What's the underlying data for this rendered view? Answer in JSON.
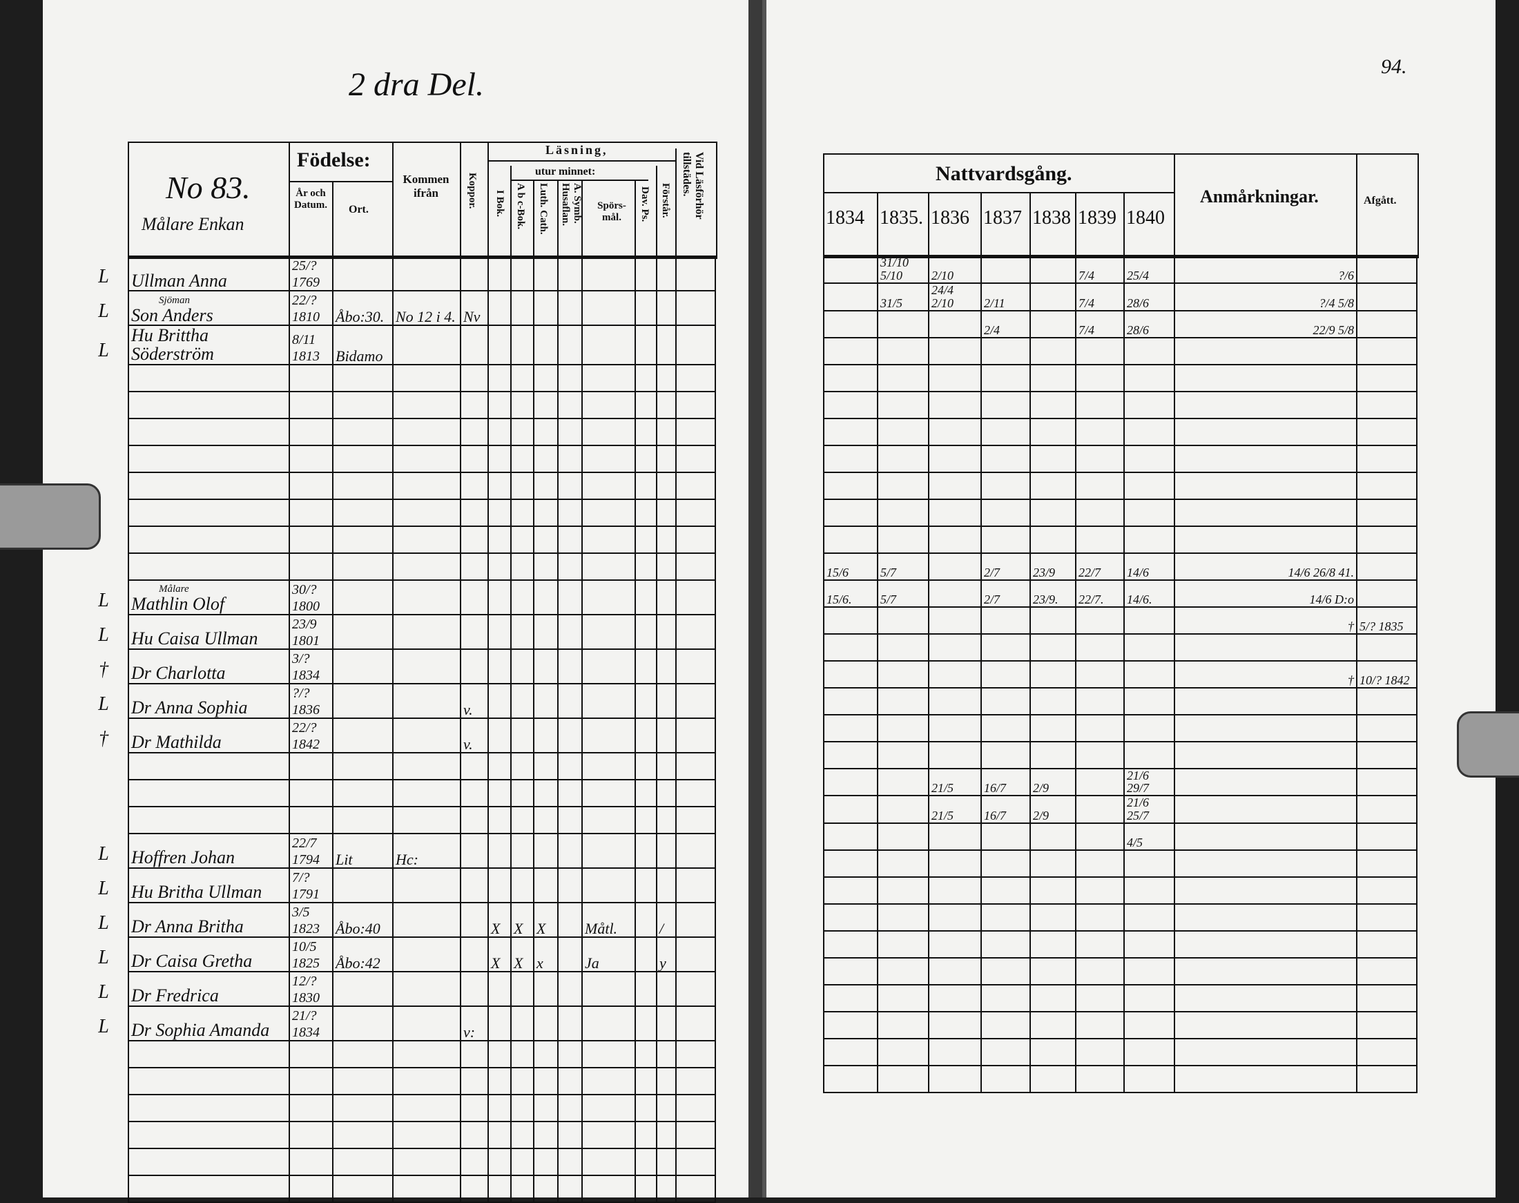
{
  "left_page": {
    "heading": "2 dra Del.",
    "household_number": "No 83.",
    "household_title": "Målare Enkan",
    "headers": {
      "fodelse": "Födelse:",
      "ar_datum": "År och Datum.",
      "ort": "Ort.",
      "kommen": "Kommen ifrån",
      "koppor": "Koppor.",
      "lasning": "Läsning,",
      "utur_minnet": "utur minnet:",
      "i_bok": "I Bok.",
      "abc": "A b c-Bok.",
      "luth": "Luth. Cath.",
      "symb": "A. Symb. Husaflan.",
      "spors": "Spörs-mål.",
      "dav": "Dav. Ps.",
      "forstar": "Förstår.",
      "vid": "Vid Läsförhör tillstädes."
    },
    "rows": [
      {
        "row": 0,
        "mark": "L",
        "name": "Ullman Anna",
        "born": "25/? 1769"
      },
      {
        "row": 1,
        "mark": "L",
        "note": "Sjöman",
        "name": "Son Anders",
        "born": "22/? 1810",
        "ort": "Åbo:30.",
        "kommen": "No 12 i 4.",
        "koppor": "Nv"
      },
      {
        "row": 2,
        "mark": "L",
        "name": "Hu Brittha Söderström",
        "born": "8/11 1813",
        "ort": "Bidamo"
      },
      {
        "row": 11,
        "mark": "L",
        "note": "Målare",
        "name": "Mathlin Olof",
        "born": "30/? 1800"
      },
      {
        "row": 12,
        "mark": "L",
        "name": "Hu Caisa Ullman",
        "born": "23/9 1801"
      },
      {
        "row": 13,
        "mark": "†",
        "name": "Dr Charlotta",
        "born": "3/? 1834"
      },
      {
        "row": 14,
        "mark": "L",
        "name": "Dr Anna Sophia",
        "born": "?/? 1836",
        "koppor": "v."
      },
      {
        "row": 15,
        "mark": "†",
        "name": "Dr Mathilda",
        "born": "22/? 1842",
        "koppor": "v."
      },
      {
        "row": 19,
        "mark": "L",
        "name": "Hoffren Johan",
        "born": "22/7 1794",
        "ort": "Lit",
        "kommen": "Hc:"
      },
      {
        "row": 20,
        "mark": "L",
        "name": "Hu Britha Ullman",
        "born": "7/? 1791"
      },
      {
        "row": 21,
        "mark": "L",
        "name": "Dr Anna Britha",
        "born": "3/5 1823",
        "ort": "Åbo:40",
        "ibok": "X",
        "abc": "X",
        "luth": "X",
        "spors": "Måtl.",
        "forstar": "/"
      },
      {
        "row": 22,
        "mark": "L",
        "name": "Dr Caisa Gretha",
        "born": "10/5 1825",
        "ort": "Åbo:42",
        "ibok": "X",
        "abc": "X",
        "luth": "x",
        "spors": "Ja",
        "forstar": "y"
      },
      {
        "row": 23,
        "mark": "L",
        "name": "Dr Fredrica",
        "born": "12/? 1830"
      },
      {
        "row": 24,
        "mark": "L",
        "name": "Dr Sophia Amanda",
        "born": "21/? 1834",
        "koppor": "v:"
      }
    ]
  },
  "right_page": {
    "page_number": "94.",
    "headers": {
      "nattvard": "Nattvardsgång.",
      "years": [
        "1834",
        "1835.",
        "1836",
        "1837",
        "1838",
        "1839",
        "1840"
      ],
      "anmarkningar": "Anmårkningar.",
      "afgatt": "Afgått."
    },
    "rows": [
      {
        "row": 0,
        "y1835": "31/10 5/10",
        "y1836": "2/10",
        "y1839": "7/4",
        "y1840": "25/4",
        "anm": "?/6"
      },
      {
        "row": 1,
        "y1835": "31/5",
        "y1836": "24/4 2/10",
        "y1837": "2/11",
        "y1839": "7/4",
        "y1840": "28/6",
        "anm": "?/4 5/8"
      },
      {
        "row": 2,
        "y1837": "2/4",
        "y1839": "7/4",
        "y1840": "28/6",
        "anm": "22/9 5/8"
      },
      {
        "row": 11,
        "y1834": "15/6",
        "y1835": "5/7",
        "y1837": "2/7",
        "y1838": "23/9",
        "y1839": "22/7",
        "y1840": "14/6",
        "anm": "14/6 26/8 41."
      },
      {
        "row": 12,
        "y1834": "15/6.",
        "y1835": "5/7",
        "y1837": "2/7",
        "y1838": "23/9.",
        "y1839": "22/7.",
        "y1840": "14/6.",
        "anm": "14/6 D:o"
      },
      {
        "row": 13,
        "anm": "†",
        "afgatt": "5/? 1835"
      },
      {
        "row": 15,
        "anm": "†",
        "afgatt": "10/? 1842"
      },
      {
        "row": 19,
        "y1836": "21/5",
        "y1837": "16/7",
        "y1838": "2/9",
        "y1840": "21/6 29/7"
      },
      {
        "row": 20,
        "y1836": "21/5",
        "y1837": "16/7",
        "y1838": "2/9",
        "y1840": "21/6 25/7"
      },
      {
        "row": 21,
        "y1840": "4/5"
      }
    ]
  },
  "colors": {
    "paper": "#f3f3f1",
    "ink": "#111111",
    "background": "#1d1d1d"
  }
}
